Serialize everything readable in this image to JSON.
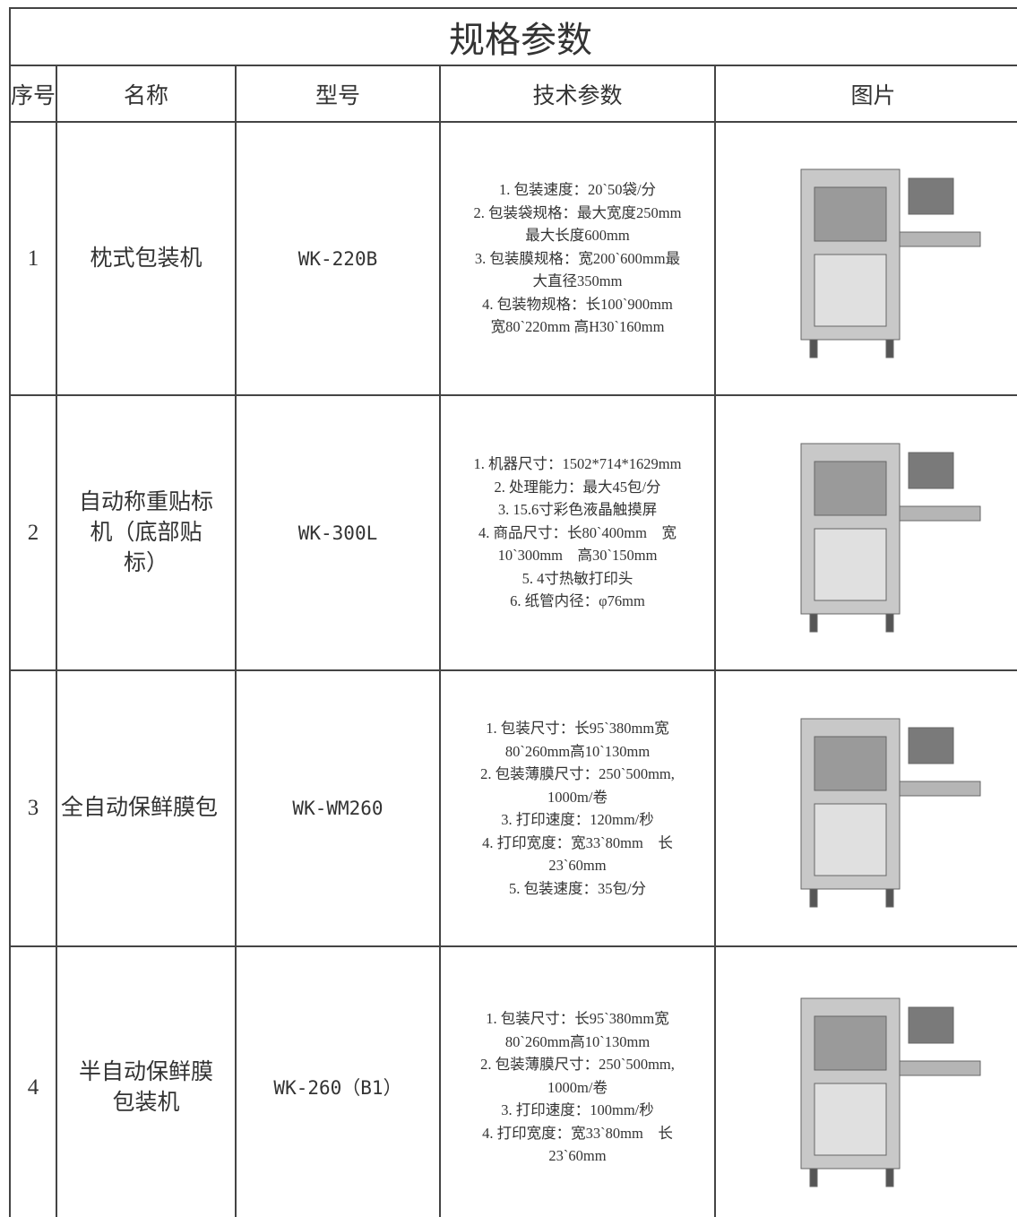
{
  "header": {
    "title": "规格参数"
  },
  "table": {
    "columns": [
      "序号",
      "名称",
      "型号",
      "技术参数",
      "图片"
    ],
    "rows": [
      {
        "no": "1",
        "name": [
          "枕式包装机"
        ],
        "model": "WK-220B",
        "specs": [
          "1. 包装速度：20`50袋/分",
          "2. 包装袋规格：最大宽度250mm",
          "最大长度600mm",
          "3. 包装膜规格：宽200`600mm最",
          "大直径350mm",
          "4. 包装物规格：长100`900mm",
          "宽80`220mm 高H30`160mm"
        ]
      },
      {
        "no": "2",
        "name": [
          "自动称重贴标",
          "机（底部贴",
          "标）"
        ],
        "model": "WK-300L",
        "specs": [
          "1. 机器尺寸：1502*714*1629mm",
          "2. 处理能力：最大45包/分",
          "3. 15.6寸彩色液晶触摸屏",
          "4. 商品尺寸：长80`400mm　宽",
          "10`300mm　高30`150mm",
          "5. 4寸热敏打印头",
          "6. 纸管内径：φ76mm"
        ]
      },
      {
        "no": "3",
        "name": [
          "全自动保鲜膜包"
        ],
        "model": "WK-WM260",
        "specs": [
          "1. 包装尺寸：长95`380mm宽",
          "80`260mm高10`130mm",
          "2. 包装薄膜尺寸：250`500mm,",
          "1000m/卷",
          "3. 打印速度：120mm/秒",
          "4. 打印宽度：宽33`80mm　长",
          "23`60mm",
          "5. 包装速度：35包/分"
        ]
      },
      {
        "no": "4",
        "name": [
          "半自动保鲜膜",
          "包装机"
        ],
        "model": "WK-260（B1）",
        "specs": [
          "1. 包装尺寸：长95`380mm宽",
          "80`260mm高10`130mm",
          "2. 包装薄膜尺寸：250`500mm,",
          "1000m/卷",
          "3. 打印速度：100mm/秒",
          "4. 打印宽度：宽33`80mm　长",
          "23`60mm"
        ]
      }
    ]
  }
}
